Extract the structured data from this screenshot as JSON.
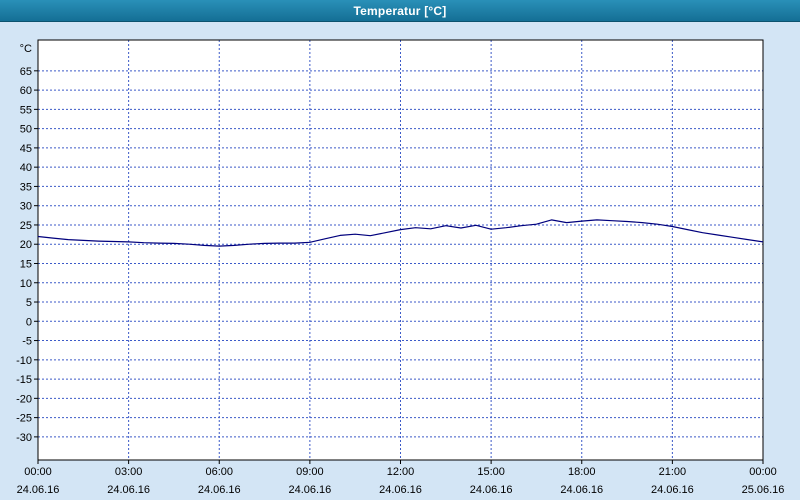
{
  "window": {
    "title": "Temperatur [°C]"
  },
  "chart_data": {
    "type": "line",
    "title": "Temperatur [°C]",
    "xlabel": "",
    "ylabel": "°C",
    "legend": "none",
    "grid": {
      "on": true,
      "color": "#3c5ac8",
      "dash": "2,2"
    },
    "background": {
      "page": "#d3e5f5",
      "plot": "#ffffff",
      "border": "#000000"
    },
    "axis": {
      "xmin": 0,
      "xmax": 24,
      "ymin": -36,
      "ymax": 73,
      "ytick_min": -30,
      "ytick_max": 65,
      "ytick_step": 5,
      "xtick_step_hours": 3
    },
    "xticks": [
      {
        "time": "00:00",
        "date": "24.06.16"
      },
      {
        "time": "03:00",
        "date": "24.06.16"
      },
      {
        "time": "06:00",
        "date": "24.06.16"
      },
      {
        "time": "09:00",
        "date": "24.06.16"
      },
      {
        "time": "12:00",
        "date": "24.06.16"
      },
      {
        "time": "15:00",
        "date": "24.06.16"
      },
      {
        "time": "18:00",
        "date": "24.06.16"
      },
      {
        "time": "21:00",
        "date": "24.06.16"
      },
      {
        "time": "00:00",
        "date": "25.06.16"
      }
    ],
    "series": [
      {
        "name": "Temperatur",
        "color": "#00007d",
        "x_hours": [
          0,
          0.5,
          1,
          1.5,
          2,
          2.5,
          3,
          3.5,
          4,
          4.5,
          5,
          5.5,
          6,
          6.5,
          7,
          7.5,
          8,
          8.5,
          9,
          9.5,
          10,
          10.5,
          11,
          11.5,
          12,
          12.5,
          13,
          13.5,
          14,
          14.5,
          15,
          15.5,
          16,
          16.5,
          17,
          17.5,
          18,
          18.5,
          19,
          19.5,
          20,
          20.5,
          21,
          21.5,
          22,
          22.5,
          23,
          23.5,
          24
        ],
        "values": [
          22.0,
          21.6,
          21.2,
          21.0,
          20.8,
          20.7,
          20.6,
          20.4,
          20.3,
          20.2,
          20.0,
          19.7,
          19.5,
          19.7,
          20.0,
          20.2,
          20.3,
          20.3,
          20.5,
          21.4,
          22.3,
          22.6,
          22.2,
          23.0,
          23.8,
          24.3,
          24.0,
          24.8,
          24.2,
          24.9,
          23.9,
          24.3,
          24.8,
          25.2,
          26.3,
          25.6,
          26.0,
          26.3,
          26.1,
          25.9,
          25.6,
          25.2,
          24.6,
          23.8,
          23.0,
          22.4,
          21.8,
          21.2,
          20.6
        ]
      }
    ]
  }
}
